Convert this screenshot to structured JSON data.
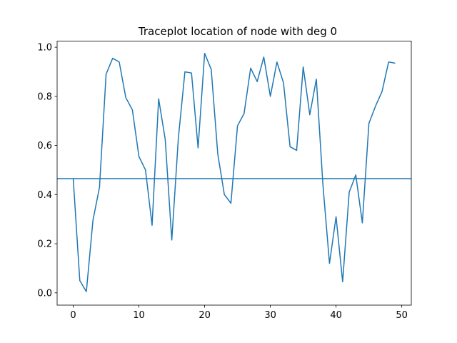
{
  "chart_data": {
    "type": "line",
    "title": "Traceplot location of node with deg 0",
    "xlabel": "",
    "ylabel": "",
    "xlim": [
      -2.45,
      51.45
    ],
    "ylim": [
      -0.05,
      1.025
    ],
    "x_ticks": [
      0,
      10,
      20,
      30,
      40,
      50
    ],
    "x_tick_labels": [
      "0",
      "10",
      "20",
      "30",
      "40",
      "50"
    ],
    "y_ticks": [
      0.0,
      0.2,
      0.4,
      0.6,
      0.8,
      1.0
    ],
    "y_tick_labels": [
      "0.0",
      "0.2",
      "0.4",
      "0.6",
      "0.8",
      "1.0"
    ],
    "grid": false,
    "series": [
      {
        "color": "#1f77b4",
        "x": [
          0,
          1,
          2,
          3,
          4,
          5,
          6,
          7,
          8,
          9,
          10,
          11,
          12,
          13,
          14,
          15,
          16,
          17,
          18,
          19,
          20,
          21,
          22,
          23,
          24,
          25,
          26,
          27,
          28,
          29,
          30,
          31,
          32,
          33,
          34,
          35,
          36,
          37,
          38,
          39,
          40,
          41,
          42,
          43,
          44,
          45,
          46,
          47,
          48,
          49
        ],
        "values": [
          0.465,
          0.05,
          0.005,
          0.295,
          0.43,
          0.89,
          0.955,
          0.94,
          0.795,
          0.745,
          0.555,
          0.5,
          0.275,
          0.79,
          0.625,
          0.215,
          0.63,
          0.9,
          0.895,
          0.59,
          0.975,
          0.91,
          0.565,
          0.4,
          0.365,
          0.68,
          0.73,
          0.915,
          0.86,
          0.96,
          0.8,
          0.94,
          0.855,
          0.595,
          0.58,
          0.92,
          0.725,
          0.87,
          0.44,
          0.12,
          0.31,
          0.045,
          0.41,
          0.48,
          0.285,
          0.69,
          0.76,
          0.82,
          0.94,
          0.935
        ]
      }
    ],
    "reference_lines": [
      {
        "orientation": "horizontal",
        "y": 0.465,
        "color": "#1f77b4"
      }
    ]
  }
}
